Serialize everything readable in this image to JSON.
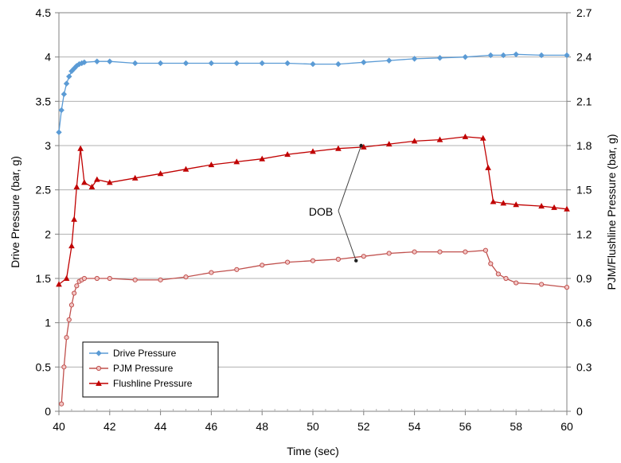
{
  "chart_data": {
    "type": "line",
    "xlabel": "Time (sec)",
    "ylabel": "Drive Pressure (bar, g)",
    "y2label": "PJM/Flushline Pressure (bar, g)",
    "xlim": [
      40,
      60
    ],
    "ylim": [
      0,
      4.5
    ],
    "y2lim": [
      0,
      2.7
    ],
    "x_ticks": [
      "40",
      "42",
      "44",
      "46",
      "48",
      "50",
      "52",
      "54",
      "56",
      "58",
      "60"
    ],
    "y_ticks": [
      "0",
      "0.5",
      "1",
      "1.5",
      "2",
      "2.5",
      "3",
      "3.5",
      "4",
      "4.5"
    ],
    "y2_ticks": [
      "0",
      "0.3",
      "0.6",
      "0.9",
      "1.2",
      "1.5",
      "1.8",
      "2.1",
      "2.4",
      "2.7"
    ],
    "grid": "horizontal",
    "legend_position": "bottom-left",
    "annotation": {
      "text": "DOB",
      "points": [
        [
          51.9,
          1.8
        ],
        [
          51.7,
          1.02
        ]
      ]
    },
    "series": [
      {
        "name": "Drive Pressure",
        "axis": "left",
        "color": "#5b9bd5",
        "marker": "diamond",
        "x": [
          40.0,
          40.1,
          40.2,
          40.3,
          40.4,
          40.5,
          40.6,
          40.7,
          40.8,
          40.9,
          41.0,
          41.5,
          42,
          43,
          44,
          45,
          46,
          47,
          48,
          49,
          50,
          51,
          52,
          53,
          54,
          55,
          56,
          57,
          57.5,
          58,
          59,
          60
        ],
        "y": [
          3.15,
          3.4,
          3.58,
          3.7,
          3.78,
          3.84,
          3.87,
          3.9,
          3.92,
          3.93,
          3.94,
          3.95,
          3.95,
          3.93,
          3.93,
          3.93,
          3.93,
          3.93,
          3.93,
          3.93,
          3.92,
          3.92,
          3.94,
          3.96,
          3.98,
          3.99,
          4.0,
          4.02,
          4.02,
          4.03,
          4.02,
          4.02
        ]
      },
      {
        "name": "PJM Pressure",
        "axis": "right",
        "color": "#c0504d",
        "marker": "circle",
        "x": [
          40.1,
          40.2,
          40.3,
          40.4,
          40.5,
          40.6,
          40.7,
          40.8,
          40.9,
          41.0,
          41.5,
          42,
          43,
          44,
          45,
          46,
          47,
          48,
          49,
          50,
          51,
          52,
          53,
          54,
          55,
          56,
          56.8,
          57.0,
          57.3,
          57.6,
          58,
          59,
          60
        ],
        "y": [
          0.05,
          0.3,
          0.5,
          0.62,
          0.72,
          0.8,
          0.85,
          0.88,
          0.89,
          0.9,
          0.9,
          0.9,
          0.89,
          0.89,
          0.91,
          0.94,
          0.96,
          0.99,
          1.01,
          1.02,
          1.03,
          1.05,
          1.07,
          1.08,
          1.08,
          1.08,
          1.09,
          1.0,
          0.93,
          0.9,
          0.87,
          0.86,
          0.84
        ]
      },
      {
        "name": "Flushline Pressure",
        "axis": "right",
        "color": "#c00000",
        "marker": "triangle",
        "x": [
          40.0,
          40.3,
          40.5,
          40.6,
          40.7,
          40.85,
          41.0,
          41.3,
          41.5,
          42,
          43,
          44,
          45,
          46,
          47,
          48,
          49,
          50,
          51,
          52,
          53,
          54,
          55,
          56,
          56.7,
          56.9,
          57.1,
          57.5,
          58,
          59,
          59.5,
          60
        ],
        "y": [
          0.86,
          0.9,
          1.12,
          1.3,
          1.52,
          1.78,
          1.55,
          1.52,
          1.57,
          1.55,
          1.58,
          1.61,
          1.64,
          1.67,
          1.69,
          1.71,
          1.74,
          1.76,
          1.78,
          1.79,
          1.81,
          1.83,
          1.84,
          1.86,
          1.85,
          1.65,
          1.42,
          1.41,
          1.4,
          1.39,
          1.38,
          1.37
        ]
      }
    ]
  }
}
